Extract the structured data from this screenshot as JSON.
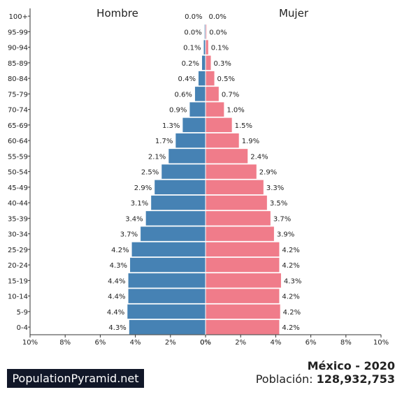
{
  "chart_data": {
    "type": "bar",
    "orientation": "horizontal",
    "layout": "population-pyramid",
    "categories": [
      "100+",
      "95-99",
      "90-94",
      "85-89",
      "80-84",
      "75-79",
      "70-74",
      "65-69",
      "60-64",
      "55-59",
      "50-54",
      "45-49",
      "40-44",
      "35-39",
      "30-34",
      "25-29",
      "20-24",
      "15-19",
      "10-14",
      "5-9",
      "0-4"
    ],
    "series": [
      {
        "name": "Hombre",
        "color": "#4682b4",
        "values": [
          0.02,
          0.05,
          0.1,
          0.2,
          0.4,
          0.6,
          0.9,
          1.3,
          1.7,
          2.1,
          2.5,
          2.9,
          3.1,
          3.4,
          3.7,
          4.2,
          4.3,
          4.4,
          4.4,
          4.45,
          4.35
        ],
        "labels": [
          "0.0%",
          "0.0%",
          "0.1%",
          "0.2%",
          "0.4%",
          "0.6%",
          "0.9%",
          "1.3%",
          "1.7%",
          "2.1%",
          "2.5%",
          "2.9%",
          "3.1%",
          "3.4%",
          "3.7%",
          "4.2%",
          "4.3%",
          "4.4%",
          "4.4%",
          "4.4%",
          "4.3%"
        ]
      },
      {
        "name": "Mujer",
        "color": "#f07c8a",
        "values": [
          0.02,
          0.05,
          0.15,
          0.3,
          0.5,
          0.75,
          1.05,
          1.5,
          1.9,
          2.4,
          2.9,
          3.3,
          3.5,
          3.7,
          3.9,
          4.2,
          4.2,
          4.3,
          4.2,
          4.25,
          4.2
        ],
        "labels": [
          "0.0%",
          "0.0%",
          "0.1%",
          "0.3%",
          "0.5%",
          "0.7%",
          "1.0%",
          "1.5%",
          "1.9%",
          "2.4%",
          "2.9%",
          "3.3%",
          "3.5%",
          "3.7%",
          "3.9%",
          "4.2%",
          "4.2%",
          "4.3%",
          "4.2%",
          "4.2%",
          "4.2%"
        ]
      }
    ],
    "xlim": [
      0,
      10
    ],
    "left_ticks": [
      "10%",
      "8%",
      "6%",
      "4%",
      "2%",
      "0%"
    ],
    "right_ticks": [
      "0%",
      "2%",
      "4%",
      "6%",
      "8%",
      "10%"
    ],
    "grid": false
  },
  "footer": {
    "brand": "PopulationPyramid.net",
    "country_year": "México - 2020",
    "population_label": "Población: ",
    "population_value": "128,932,753"
  }
}
